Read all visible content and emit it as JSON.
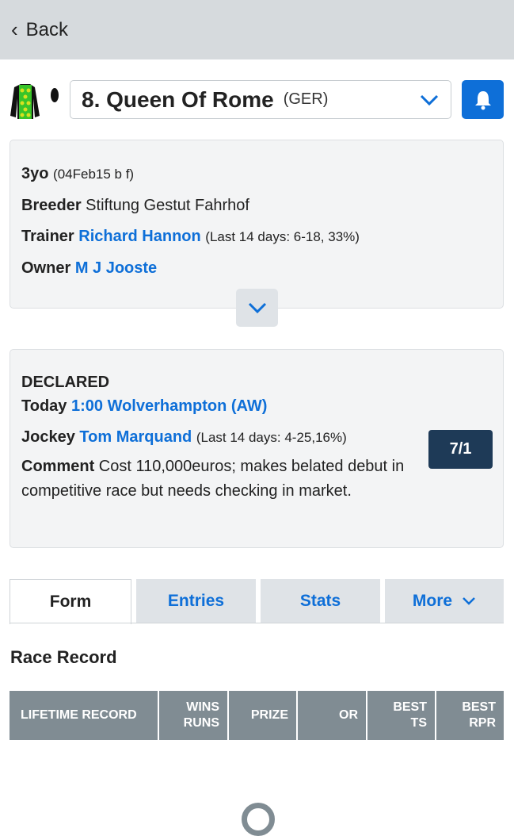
{
  "nav": {
    "back_label": "Back"
  },
  "horse": {
    "name": "8. Queen Of Rome",
    "country": "(GER)"
  },
  "colors": {
    "accent": "#0e6fd8",
    "odds_bg": "#1e3a57",
    "header_bg": "#808c93"
  },
  "info": {
    "age": "3yo",
    "age_detail": "(04Feb15 b f)",
    "breeder_label": "Breeder",
    "breeder": "Stiftung Gestut Fahrhof",
    "trainer_label": "Trainer",
    "trainer": "Richard Hannon",
    "trainer_stats": "(Last 14 days: 6-18, 33%)",
    "owner_label": "Owner",
    "owner": "M J Jooste"
  },
  "declared": {
    "heading": "DECLARED",
    "today_label": "Today",
    "race": "1:00 Wolverhampton (AW)",
    "jockey_label": "Jockey",
    "jockey": "Tom Marquand",
    "jockey_stats": "(Last 14 days: 4-25,16%)",
    "comment_label": "Comment",
    "comment": "Cost 110,000euros; makes belated debut in competitive race but needs checking in market.",
    "odds": "7/1"
  },
  "tabs": [
    {
      "label": "Form"
    },
    {
      "label": "Entries"
    },
    {
      "label": "Stats"
    },
    {
      "label": "More"
    }
  ],
  "race_record": {
    "title": "Race Record",
    "headers": [
      "LIFETIME RECORD",
      "WINS RUNS",
      "PRIZE",
      "OR",
      "BEST TS",
      "BEST RPR"
    ]
  }
}
